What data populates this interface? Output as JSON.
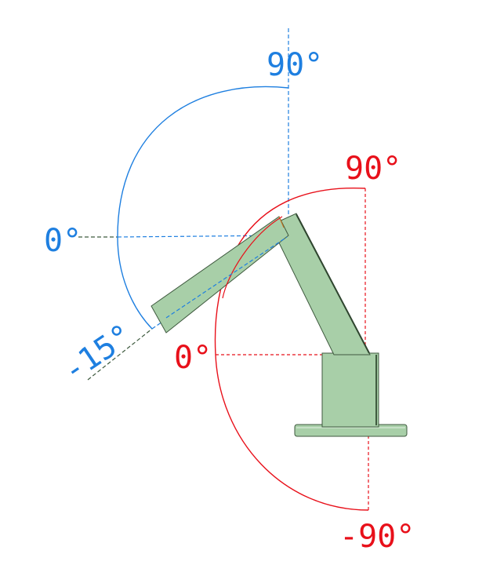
{
  "colors": {
    "blue": "#1e7fe0",
    "red": "#e8101a",
    "arm_fill": "#a8cfa8",
    "arm_edge": "#3f5a3f",
    "guide_dark": "#3e5a3e"
  },
  "labels": {
    "blue_top": "90°",
    "blue_zero": "0°",
    "blue_neg": "-15°",
    "red_top": "90°",
    "red_zero": "0°",
    "red_neg": "-90°"
  }
}
